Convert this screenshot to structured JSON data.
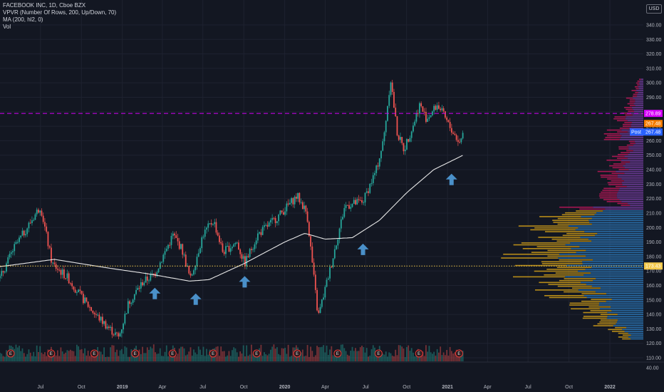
{
  "legend": {
    "symbol": "FACEBOOK INC, 1D, Cboe BZX",
    "vpvr": "VPVR (Number Of Rows, 200, Up/Down, 70)",
    "ma": "MA (200, hl2, 0)",
    "vol": "Vol"
  },
  "currency": "USD",
  "colors": {
    "background": "#131722",
    "grid": "#1e2230",
    "up": "#26a69a",
    "down": "#ef5350",
    "ma": "#e6e6e6",
    "resistance": "#d500f9",
    "support": "#f2c94c",
    "arrow": "#4a90c9",
    "profile_up_low": "#2e7fc4",
    "profile_down_low": "#d4a017",
    "profile_up_high": "#7b3fa8",
    "profile_down_high": "#c2185b"
  },
  "icons": {
    "support_arrow": "arrow-up-icon",
    "earnings_marker": "earnings-icon"
  },
  "chart_data": {
    "type": "candlestick",
    "title": "FACEBOOK INC, 1D, Cboe BZX",
    "ylim": [
      40,
      345
    ],
    "y_ticks": [
      40,
      110,
      120,
      130,
      140,
      150,
      160,
      170,
      180,
      190,
      200,
      210,
      220,
      230,
      240,
      250,
      260,
      270,
      280,
      290,
      300,
      310,
      320,
      330,
      340
    ],
    "x_ticks": [
      "Jul",
      "Oct",
      "2019",
      "Apr",
      "Jul",
      "Oct",
      "2020",
      "Apr",
      "Jul",
      "Oct",
      "2021",
      "Apr",
      "Jul",
      "Oct",
      "2022"
    ],
    "price_path": [
      [
        "2018-04-01",
        165
      ],
      [
        "2018-05-01",
        185
      ],
      [
        "2018-06-01",
        200
      ],
      [
        "2018-07-01",
        215
      ],
      [
        "2018-07-27",
        175
      ],
      [
        "2018-09-01",
        165
      ],
      [
        "2018-10-01",
        152
      ],
      [
        "2018-11-01",
        140
      ],
      [
        "2018-12-24",
        124
      ],
      [
        "2019-01-15",
        148
      ],
      [
        "2019-02-15",
        162
      ],
      [
        "2019-03-15",
        168
      ],
      [
        "2019-04-25",
        195
      ],
      [
        "2019-05-15",
        185
      ],
      [
        "2019-06-03",
        164
      ],
      [
        "2019-07-01",
        195
      ],
      [
        "2019-07-25",
        205
      ],
      [
        "2019-08-15",
        183
      ],
      [
        "2019-09-15",
        190
      ],
      [
        "2019-10-03",
        175
      ],
      [
        "2019-11-01",
        195
      ],
      [
        "2019-12-15",
        207
      ],
      [
        "2020-01-29",
        222
      ],
      [
        "2020-02-20",
        210
      ],
      [
        "2020-03-16",
        138
      ],
      [
        "2020-04-15",
        175
      ],
      [
        "2020-05-15",
        215
      ],
      [
        "2020-06-25",
        218
      ],
      [
        "2020-07-25",
        240
      ],
      [
        "2020-08-10",
        260
      ],
      [
        "2020-08-26",
        303
      ],
      [
        "2020-09-10",
        265
      ],
      [
        "2020-09-25",
        254
      ],
      [
        "2020-10-15",
        270
      ],
      [
        "2020-10-30",
        285
      ],
      [
        "2020-11-15",
        275
      ],
      [
        "2020-12-10",
        285
      ],
      [
        "2021-01-05",
        270
      ],
      [
        "2021-01-29",
        258
      ],
      [
        "2021-02-05",
        267
      ]
    ],
    "ma_200_path": [
      [
        "2018-04-01",
        173
      ],
      [
        "2018-08-01",
        178
      ],
      [
        "2018-12-01",
        172
      ],
      [
        "2019-03-01",
        168
      ],
      [
        "2019-06-01",
        163
      ],
      [
        "2019-07-15",
        164
      ],
      [
        "2019-10-01",
        175
      ],
      [
        "2020-01-01",
        190
      ],
      [
        "2020-02-15",
        196
      ],
      [
        "2020-04-01",
        192
      ],
      [
        "2020-06-01",
        193
      ],
      [
        "2020-08-01",
        205
      ],
      [
        "2020-10-01",
        224
      ],
      [
        "2020-12-01",
        240
      ],
      [
        "2021-02-05",
        250
      ]
    ],
    "price_lines": [
      {
        "value": 278.89,
        "label": "278.89",
        "style": "dashed",
        "color": "#d500f9"
      },
      {
        "value": 173.43,
        "label": "173.43",
        "style": "dotted",
        "color": "#f2c94c"
      }
    ],
    "price_tags": [
      {
        "value": 267.48,
        "label": "267.48",
        "color": "#f57c00"
      },
      {
        "value": 267.48,
        "label": "267.48",
        "prefix": "Post",
        "color": "#2962ff"
      }
    ],
    "support_arrows_dates": [
      "2019-03-15",
      "2019-06-15",
      "2019-10-03",
      "2020-06-25",
      "2021-01-10"
    ],
    "earnings_dates": [
      "2018-04-25",
      "2018-07-25",
      "2018-10-30",
      "2019-01-30",
      "2019-04-24",
      "2019-07-24",
      "2019-10-30",
      "2020-01-29",
      "2020-04-29",
      "2020-07-30",
      "2020-10-29",
      "2021-01-27"
    ],
    "volume_profile_note": "Visible range volume profile, up/down split"
  }
}
